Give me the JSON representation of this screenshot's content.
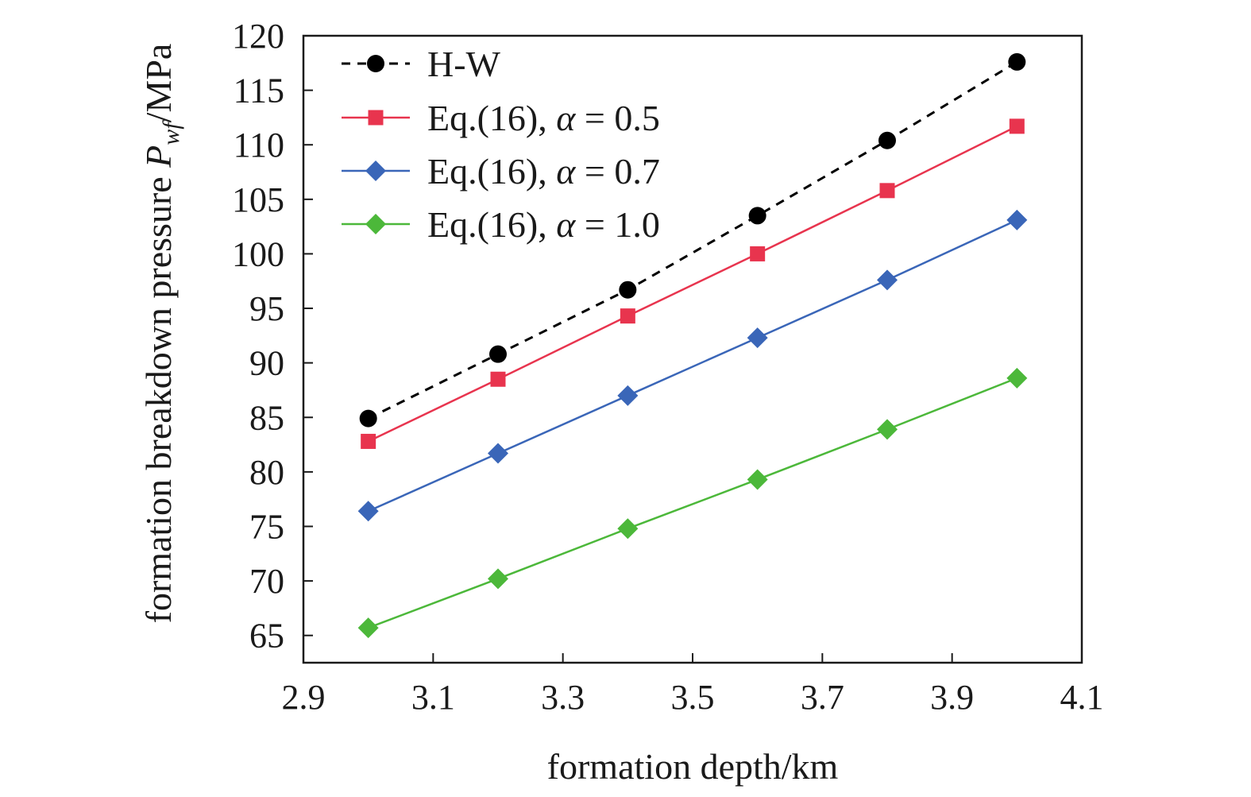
{
  "chart_data": {
    "type": "line",
    "xlabel": "formation depth/km",
    "ylabel": {
      "prefix": "formation breakdown pressure ",
      "symbol": "P",
      "subscript": "wf",
      "unit": "/MPa"
    },
    "xlim": [
      2.9,
      4.1
    ],
    "ylim": [
      62.5,
      120
    ],
    "xticks": [
      2.9,
      3.1,
      3.3,
      3.5,
      3.7,
      3.9,
      4.1
    ],
    "xtick_labels": [
      "2.9",
      "3.1",
      "3.3",
      "3.5",
      "3.7",
      "3.9",
      "4.1"
    ],
    "yticks": [
      65,
      70,
      75,
      80,
      85,
      90,
      95,
      100,
      105,
      110,
      115,
      120
    ],
    "ytick_labels": [
      "65",
      "70",
      "75",
      "80",
      "85",
      "90",
      "95",
      "100",
      "105",
      "110",
      "115",
      "120"
    ],
    "grid": false,
    "legend_position": "top-left",
    "x": [
      3.0,
      3.2,
      3.4,
      3.6,
      3.8,
      4.0
    ],
    "series": [
      {
        "name": "H-W",
        "legend_prefix": "H-W",
        "legend_alpha": "",
        "values": [
          84.9,
          90.8,
          96.7,
          103.5,
          110.4,
          117.6
        ],
        "color": "#000000",
        "marker": "circle",
        "dashed": true
      },
      {
        "name": "Eq.(16), α = 0.5",
        "legend_prefix": "Eq.(16), ",
        "legend_alpha": "= 0.5",
        "values": [
          82.8,
          88.5,
          94.3,
          100.0,
          105.8,
          111.7
        ],
        "color": "#e8344e",
        "marker": "square",
        "dashed": false
      },
      {
        "name": "Eq.(16), α = 0.7",
        "legend_prefix": "Eq.(16), ",
        "legend_alpha": "= 0.7",
        "values": [
          76.4,
          81.7,
          87.0,
          92.3,
          97.6,
          103.1
        ],
        "color": "#3a66b8",
        "marker": "diamond",
        "dashed": false
      },
      {
        "name": "Eq.(16), α = 1.0",
        "legend_prefix": "Eq.(16), ",
        "legend_alpha": "= 1.0",
        "values": [
          65.7,
          70.2,
          74.8,
          79.3,
          83.9,
          88.6
        ],
        "color": "#4cb83a",
        "marker": "diamond",
        "dashed": false
      }
    ]
  }
}
